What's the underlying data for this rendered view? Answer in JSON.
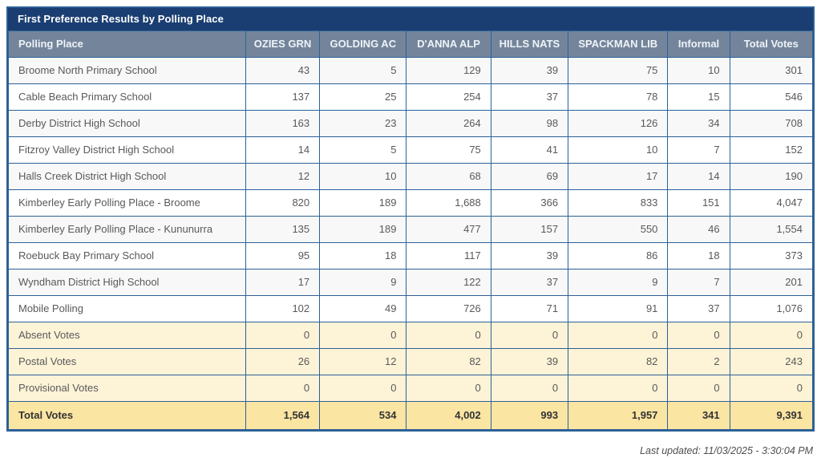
{
  "title_bar": {
    "title": "First Preference Results by Polling Place"
  },
  "chart_data": {
    "type": "table",
    "title": "First Preference Results by Polling Place",
    "columns": [
      "Polling Place",
      "OZIES GRN",
      "GOLDING AC",
      "D'ANNA ALP",
      "HILLS NATS",
      "SPACKMAN LIB",
      "Informal",
      "Total Votes"
    ],
    "rows": [
      {
        "label": "Broome North Primary School",
        "values": [
          "43",
          "5",
          "129",
          "39",
          "75",
          "10",
          "301"
        ],
        "style": "normal"
      },
      {
        "label": "Cable Beach Primary School",
        "values": [
          "137",
          "25",
          "254",
          "37",
          "78",
          "15",
          "546"
        ],
        "style": "normal"
      },
      {
        "label": "Derby District High School",
        "values": [
          "163",
          "23",
          "264",
          "98",
          "126",
          "34",
          "708"
        ],
        "style": "normal"
      },
      {
        "label": "Fitzroy Valley District High School",
        "values": [
          "14",
          "5",
          "75",
          "41",
          "10",
          "7",
          "152"
        ],
        "style": "normal"
      },
      {
        "label": "Halls Creek District High School",
        "values": [
          "12",
          "10",
          "68",
          "69",
          "17",
          "14",
          "190"
        ],
        "style": "normal"
      },
      {
        "label": "Kimberley Early Polling Place - Broome",
        "values": [
          "820",
          "189",
          "1,688",
          "366",
          "833",
          "151",
          "4,047"
        ],
        "style": "normal"
      },
      {
        "label": "Kimberley Early Polling Place - Kununurra",
        "values": [
          "135",
          "189",
          "477",
          "157",
          "550",
          "46",
          "1,554"
        ],
        "style": "normal"
      },
      {
        "label": "Roebuck Bay Primary School",
        "values": [
          "95",
          "18",
          "117",
          "39",
          "86",
          "18",
          "373"
        ],
        "style": "normal"
      },
      {
        "label": "Wyndham District High School",
        "values": [
          "17",
          "9",
          "122",
          "37",
          "9",
          "7",
          "201"
        ],
        "style": "normal"
      },
      {
        "label": "Mobile Polling",
        "values": [
          "102",
          "49",
          "726",
          "71",
          "91",
          "37",
          "1,076"
        ],
        "style": "normal"
      },
      {
        "label": "Absent Votes",
        "values": [
          "0",
          "0",
          "0",
          "0",
          "0",
          "0",
          "0"
        ],
        "style": "special"
      },
      {
        "label": "Postal Votes",
        "values": [
          "26",
          "12",
          "82",
          "39",
          "82",
          "2",
          "243"
        ],
        "style": "special"
      },
      {
        "label": "Provisional Votes",
        "values": [
          "0",
          "0",
          "0",
          "0",
          "0",
          "0",
          "0"
        ],
        "style": "special"
      }
    ],
    "total_row": {
      "label": "Total Votes",
      "values": [
        "1,564",
        "534",
        "4,002",
        "993",
        "1,957",
        "341",
        "9,391"
      ]
    }
  },
  "footer": {
    "last_updated": "Last updated: 11/03/2025 - 3:30:04 PM"
  },
  "colors": {
    "title_bar_bg": "#1a3e71",
    "header_bg": "#74859b",
    "border_blue": "#2c6197",
    "alt_row_bg": "#f8f8f8",
    "special_row_bg": "#fdf3d7",
    "total_row_bg": "#fbe5a3",
    "cell_text": "#595959",
    "total_text": "#333333",
    "footer_text": "#4f4f4f"
  }
}
